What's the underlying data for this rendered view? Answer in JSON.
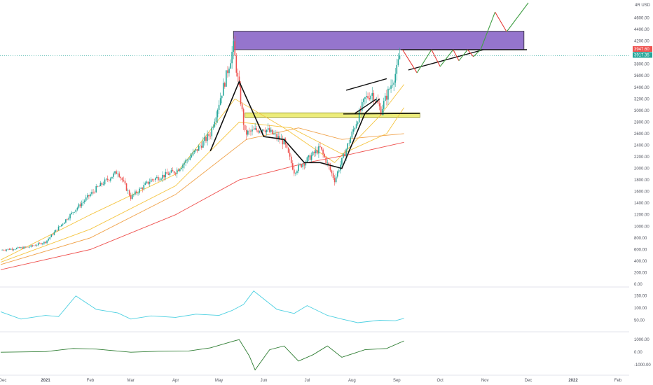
{
  "colors": {
    "background": "#ffffff",
    "up": "#26a69a",
    "down": "#ef5350",
    "resistance_zone": "#9575cd",
    "support_zone": "#ecec7a",
    "ma_fast": "#f5c542",
    "ma_mid": "#f0a24a",
    "ma_slow": "#ef5350",
    "projection_red": "#e53935",
    "projection_green": "#43a047",
    "osc1": "#4dd0e1",
    "osc2": "#2e7d32",
    "axis_text": "#50535e"
  },
  "chart_data": {
    "type": "candlestick",
    "axis_header": "4R USD",
    "x_labels": [
      "Dec",
      "2021",
      "Feb",
      "Mar",
      "Apr",
      "May",
      "Jun",
      "Jul",
      "Aug",
      "Sep",
      "Oct",
      "Nov",
      "Dec",
      "2022",
      "Feb"
    ],
    "y_ticks": [
      "4600.00",
      "4400.00",
      "4200.00",
      "4000.00",
      "3800.00",
      "3600.00",
      "3400.00",
      "3200.00",
      "3000.00",
      "2800.00",
      "2600.00",
      "2400.00",
      "2200.00",
      "2000.00",
      "1800.00",
      "1600.00",
      "1400.00",
      "1200.00",
      "1000.00",
      "800.00",
      "600.00",
      "400.00",
      "200.00",
      "0.00"
    ],
    "ylim": [
      0,
      4860
    ],
    "current_price_labels": [
      "3947.60",
      "3917.35"
    ],
    "price_path": [
      [
        "2020-12-01",
        590
      ],
      [
        "2020-12-20",
        640
      ],
      [
        "2021-01-01",
        730
      ],
      [
        "2021-01-20",
        1250
      ],
      [
        "2021-02-05",
        1650
      ],
      [
        "2021-02-20",
        1950
      ],
      [
        "2021-03-01",
        1500
      ],
      [
        "2021-03-15",
        1800
      ],
      [
        "2021-04-01",
        1950
      ],
      [
        "2021-04-15",
        2300
      ],
      [
        "2021-04-25",
        2600
      ],
      [
        "2021-05-05",
        3500
      ],
      [
        "2021-05-11",
        4100
      ],
      [
        "2021-05-19",
        2600
      ],
      [
        "2021-06-01",
        2700
      ],
      [
        "2021-06-15",
        2450
      ],
      [
        "2021-06-22",
        1950
      ],
      [
        "2021-07-01",
        2150
      ],
      [
        "2021-07-10",
        2350
      ],
      [
        "2021-07-20",
        1800
      ],
      [
        "2021-08-01",
        2600
      ],
      [
        "2021-08-10",
        3200
      ],
      [
        "2021-08-15",
        3300
      ],
      [
        "2021-08-21",
        3000
      ],
      [
        "2021-09-01",
        3700
      ],
      [
        "2021-09-03",
        3947
      ]
    ],
    "moving_averages": [
      {
        "points": [
          [
            "2020-12-01",
            420
          ],
          [
            "2021-02-01",
            1200
          ],
          [
            "2021-04-01",
            1900
          ],
          [
            "2021-05-12",
            3200
          ],
          [
            "2021-06-15",
            2700
          ],
          [
            "2021-07-20",
            2100
          ],
          [
            "2021-08-20",
            2900
          ],
          [
            "2021-09-06",
            3450
          ]
        ]
      },
      {
        "points": [
          [
            "2020-12-01",
            380
          ],
          [
            "2021-02-01",
            950
          ],
          [
            "2021-04-01",
            1700
          ],
          [
            "2021-05-15",
            2800
          ],
          [
            "2021-06-20",
            2700
          ],
          [
            "2021-07-25",
            2250
          ],
          [
            "2021-08-25",
            2600
          ],
          [
            "2021-09-06",
            3050
          ]
        ]
      },
      {
        "points": [
          [
            "2020-12-01",
            340
          ],
          [
            "2021-02-01",
            800
          ],
          [
            "2021-04-01",
            1550
          ],
          [
            "2021-05-20",
            2500
          ],
          [
            "2021-06-25",
            2700
          ],
          [
            "2021-07-25",
            2500
          ],
          [
            "2021-09-06",
            2600
          ]
        ]
      },
      {
        "points": [
          [
            "2020-12-01",
            250
          ],
          [
            "2021-02-01",
            600
          ],
          [
            "2021-04-01",
            1200
          ],
          [
            "2021-05-15",
            1800
          ],
          [
            "2021-07-01",
            2100
          ],
          [
            "2021-08-01",
            2250
          ],
          [
            "2021-09-06",
            2450
          ]
        ]
      }
    ],
    "resistance_zone": {
      "from": "2021-05-11",
      "to": "2021-11-28",
      "low": 4050,
      "high": 4370
    },
    "support_zone": {
      "from": "2021-05-19",
      "to": "2021-09-17",
      "low": 2880,
      "high": 2960
    },
    "drawings": {
      "path_black": [
        [
          "2021-04-25",
          2300
        ],
        [
          "2021-05-15",
          3500
        ],
        [
          "2021-06-01",
          2550
        ],
        [
          "2021-06-15",
          2500
        ],
        [
          "2021-06-29",
          2100
        ],
        [
          "2021-07-10",
          2100
        ],
        [
          "2021-07-25",
          2000
        ],
        [
          "2021-08-10",
          2950
        ],
        [
          "2021-08-20",
          3200
        ]
      ],
      "lower_rising": [
        [
          "2021-08-03",
          2950
        ],
        [
          "2021-08-18",
          3200
        ]
      ],
      "channel_top": [
        [
          "2021-07-28",
          3350
        ],
        [
          "2021-08-25",
          3550
        ]
      ],
      "neckline_2900": [
        [
          "2021-07-26",
          2940
        ],
        [
          "2021-09-17",
          2950
        ]
      ],
      "triangle_top": [
        [
          "2021-09-04",
          4050
        ],
        [
          "2021-11-30",
          4050
        ]
      ],
      "triangle_base": [
        [
          "2021-09-09",
          3700
        ],
        [
          "2021-10-31",
          4050
        ]
      ]
    },
    "projection_zigzag": [
      [
        "2021-09-05",
        4050
      ],
      [
        "2021-09-15",
        3650
      ],
      [
        "2021-09-25",
        4050
      ],
      [
        "2021-10-01",
        3760
      ],
      [
        "2021-10-10",
        4050
      ],
      [
        "2021-10-14",
        3860
      ],
      [
        "2021-10-20",
        4050
      ],
      [
        "2021-10-24",
        3930
      ],
      [
        "2021-10-29",
        4050
      ],
      [
        "2021-11-08",
        4700
      ],
      [
        "2021-11-16",
        4360
      ],
      [
        "2021-12-01",
        4860
      ]
    ],
    "oscillator_1": {
      "ticks": [
        "150.00",
        "100.00",
        "50.00"
      ],
      "ylim": [
        20,
        175
      ],
      "points": [
        [
          "2020-12-01",
          85
        ],
        [
          "2020-12-15",
          55
        ],
        [
          "2021-01-01",
          70
        ],
        [
          "2021-01-10",
          65
        ],
        [
          "2021-01-22",
          150
        ],
        [
          "2021-02-05",
          95
        ],
        [
          "2021-02-20",
          80
        ],
        [
          "2021-03-01",
          55
        ],
        [
          "2021-03-15",
          68
        ],
        [
          "2021-04-01",
          62
        ],
        [
          "2021-04-15",
          75
        ],
        [
          "2021-05-01",
          70
        ],
        [
          "2021-05-10",
          90
        ],
        [
          "2021-05-18",
          115
        ],
        [
          "2021-05-25",
          170
        ],
        [
          "2021-06-10",
          95
        ],
        [
          "2021-06-22",
          78
        ],
        [
          "2021-07-01",
          110
        ],
        [
          "2021-07-15",
          70
        ],
        [
          "2021-07-25",
          55
        ],
        [
          "2021-08-05",
          40
        ],
        [
          "2021-08-20",
          50
        ],
        [
          "2021-08-31",
          48
        ],
        [
          "2021-09-06",
          58
        ]
      ]
    },
    "oscillator_2": {
      "ticks": [
        "1000.00",
        "0.00",
        "-1000.00"
      ],
      "ylim": [
        -1600,
        1400
      ],
      "points": [
        [
          "2020-12-01",
          0
        ],
        [
          "2021-01-01",
          50
        ],
        [
          "2021-01-20",
          300
        ],
        [
          "2021-02-05",
          250
        ],
        [
          "2021-03-01",
          0
        ],
        [
          "2021-03-20",
          80
        ],
        [
          "2021-04-10",
          100
        ],
        [
          "2021-04-25",
          350
        ],
        [
          "2021-05-10",
          850
        ],
        [
          "2021-05-15",
          1000
        ],
        [
          "2021-05-22",
          -300
        ],
        [
          "2021-05-26",
          -1400
        ],
        [
          "2021-06-05",
          200
        ],
        [
          "2021-06-15",
          500
        ],
        [
          "2021-06-25",
          -700
        ],
        [
          "2021-07-05",
          -200
        ],
        [
          "2021-07-15",
          500
        ],
        [
          "2021-07-25",
          -400
        ],
        [
          "2021-08-10",
          200
        ],
        [
          "2021-08-25",
          300
        ],
        [
          "2021-09-06",
          900
        ]
      ]
    }
  }
}
